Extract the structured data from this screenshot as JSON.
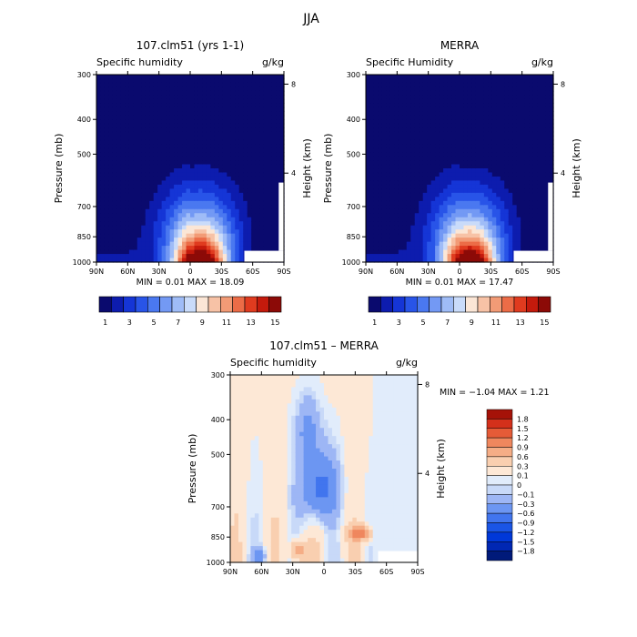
{
  "figure_title": "JJA",
  "colors": {
    "abs_levels": [
      "#0a0a6e",
      "#0d1cae",
      "#1535d6",
      "#2854e8",
      "#4a78f0",
      "#7399f4",
      "#9fbcf7",
      "#c9dbfa",
      "#fbe6d6",
      "#f7c2a6",
      "#f29b76",
      "#ec6c47",
      "#e03b1f",
      "#c41a0c",
      "#8c0a07"
    ],
    "diff_levels": [
      "#001a7a",
      "#0027b3",
      "#0038d9",
      "#1a55e6",
      "#4175ee",
      "#6c96f2",
      "#9db6f5",
      "#c8d9f8",
      "#e1ecfb",
      "#fde8d6",
      "#f9cfb0",
      "#f5ad86",
      "#ef875e",
      "#e55b37",
      "#d4301b",
      "#a51208"
    ]
  },
  "chart_data": [
    {
      "type": "heatmap",
      "title": "107.clm51 (yrs 1-1)",
      "subtitle_left": "Specific humidity",
      "subtitle_right": "g/kg",
      "ylabel": "Pressure (mb)",
      "y2label": "Height (km)",
      "x_ticks": [
        "90N",
        "60N",
        "30N",
        "0",
        "30S",
        "60S",
        "90S"
      ],
      "y_ticks": [
        "300",
        "400",
        "500",
        "700",
        "850",
        "1000"
      ],
      "y_tick_values": [
        300,
        400,
        500,
        700,
        850,
        1000
      ],
      "y2_ticks": [
        "8",
        "4"
      ],
      "y2_tick_values": [
        8,
        4
      ],
      "ylim": [
        1000,
        300
      ],
      "xlim": [
        90,
        -90
      ],
      "stats": "MIN =   0.01   MAX =   18.09",
      "colorbar_labels": [
        "1",
        "3",
        "5",
        "7",
        "9",
        "11",
        "13",
        "15"
      ],
      "colorbar_levels": [
        1,
        2,
        3,
        4,
        5,
        6,
        7,
        8,
        9,
        10,
        11,
        12,
        13,
        14,
        15
      ],
      "peak_value": 18.09,
      "peak_latitude": -10,
      "peak_pressure": 960
    },
    {
      "type": "heatmap",
      "title": "MERRA",
      "subtitle_left": "Specific Humidity",
      "subtitle_right": "g/kg",
      "ylabel": "Pressure (mb)",
      "y2label": "Height (km)",
      "x_ticks": [
        "90N",
        "60N",
        "30N",
        "0",
        "30S",
        "60S",
        "90S"
      ],
      "y_ticks": [
        "300",
        "400",
        "500",
        "700",
        "850",
        "1000"
      ],
      "y_tick_values": [
        300,
        400,
        500,
        700,
        850,
        1000
      ],
      "y2_ticks": [
        "8",
        "4"
      ],
      "y2_tick_values": [
        8,
        4
      ],
      "ylim": [
        1000,
        300
      ],
      "xlim": [
        90,
        -90
      ],
      "stats": "MIN =   0.01   MAX =   17.47",
      "colorbar_labels": [
        "1",
        "3",
        "5",
        "7",
        "9",
        "11",
        "13",
        "15"
      ],
      "colorbar_levels": [
        1,
        2,
        3,
        4,
        5,
        6,
        7,
        8,
        9,
        10,
        11,
        12,
        13,
        14,
        15
      ],
      "peak_value": 17.47,
      "peak_latitude": -10,
      "peak_pressure": 960
    },
    {
      "type": "heatmap",
      "title": "107.clm51 – MERRA",
      "subtitle_left": "Specific humidity",
      "subtitle_right": "g/kg",
      "ylabel": "Pressure (mb)",
      "y2label": "Height (km)",
      "x_ticks": [
        "90N",
        "60N",
        "30N",
        "0",
        "30S",
        "60S",
        "90S"
      ],
      "y_ticks": [
        "300",
        "400",
        "500",
        "700",
        "850",
        "1000"
      ],
      "y_tick_values": [
        300,
        400,
        500,
        700,
        850,
        1000
      ],
      "y2_ticks": [
        "8",
        "4"
      ],
      "y2_tick_values": [
        8,
        4
      ],
      "ylim": [
        1000,
        300
      ],
      "xlim": [
        90,
        -90
      ],
      "stats": "MIN =   −1.04   MAX =   1.21",
      "colorbar_labels": [
        "1.8",
        "1.5",
        "1.2",
        "0.9",
        "0.6",
        "0.3",
        "0.1",
        "0",
        "−0.1",
        "−0.3",
        "−0.6",
        "−0.9",
        "−1.2",
        "−1.5",
        "−1.8"
      ],
      "colorbar_levels": [
        -1.8,
        -1.5,
        -1.2,
        -0.9,
        -0.6,
        -0.3,
        -0.1,
        0,
        0.1,
        0.3,
        0.6,
        0.9,
        1.2,
        1.5,
        1.8
      ],
      "min_value": -1.04,
      "max_value": 1.21,
      "min_latitude": 5,
      "min_pressure": 640,
      "max_latitude": -35,
      "max_pressure": 830
    }
  ]
}
